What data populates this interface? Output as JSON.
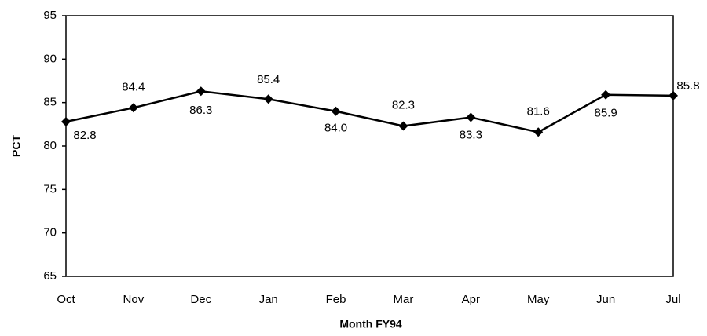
{
  "chart_data": {
    "type": "line",
    "x_label": "Month FY94",
    "y_label": "PCT",
    "categories": [
      "Oct",
      "Nov",
      "Dec",
      "Jan",
      "Feb",
      "Mar",
      "Apr",
      "May",
      "Jun",
      "Jul"
    ],
    "values": [
      82.8,
      84.4,
      86.3,
      85.4,
      84.0,
      82.3,
      83.3,
      81.6,
      85.9,
      85.8
    ],
    "value_labels": [
      "82.8",
      "84.4",
      "86.3",
      "85.4",
      "84.0",
      "82.3",
      "83.3",
      "81.6",
      "85.9",
      "85.8"
    ],
    "color": "#000000",
    "ylim": [
      65,
      95
    ],
    "yticks": [
      65,
      70,
      75,
      80,
      85,
      90,
      95
    ]
  }
}
